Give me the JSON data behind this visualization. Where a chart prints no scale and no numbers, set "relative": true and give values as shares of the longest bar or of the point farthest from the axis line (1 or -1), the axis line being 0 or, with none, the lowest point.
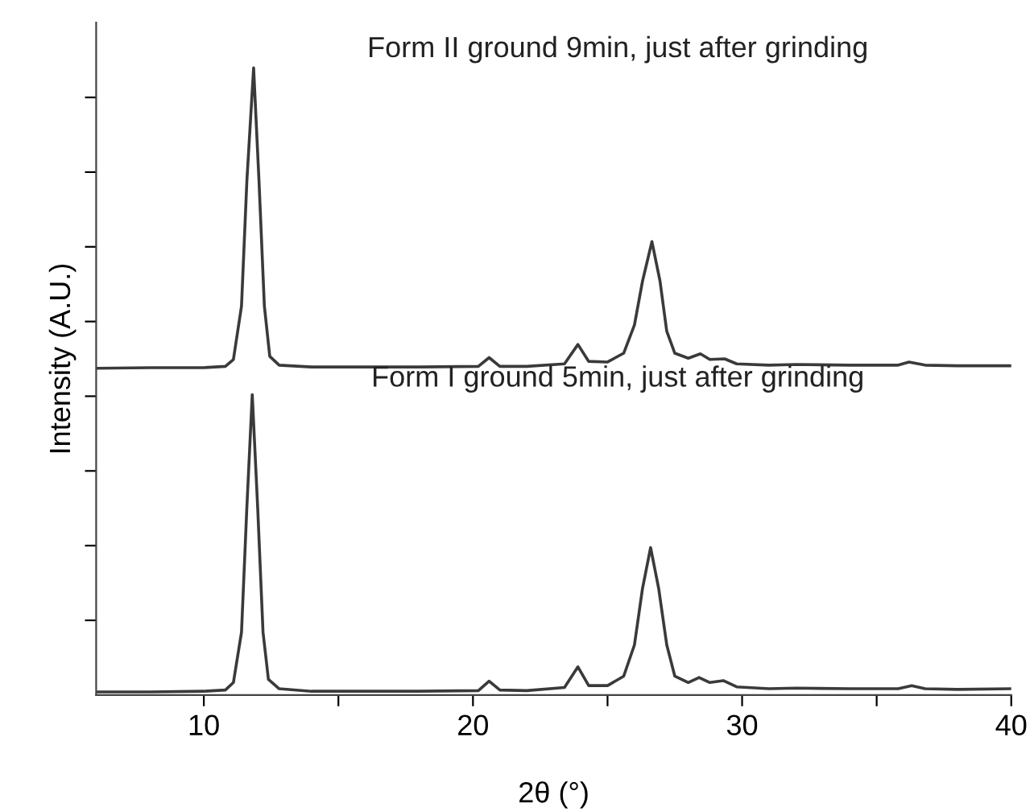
{
  "chart_data": {
    "type": "line",
    "relative": true,
    "xlabel": "2θ (°)",
    "ylabel": "Intensity (A.U.)",
    "xlim": [
      6,
      40
    ],
    "xticks": [
      10,
      {
        "value": 15,
        "label": null
      },
      20,
      {
        "value": 25,
        "label": null
      },
      30,
      {
        "value": 35,
        "label": null
      },
      40
    ],
    "annotations": [
      "Form II ground 9min, just after grinding",
      "Form I ground 5min, just after grinding"
    ],
    "tick_labels": "x",
    "grid": false,
    "legend": false,
    "marker": "none",
    "line_style": "solid",
    "series": [
      {
        "color": "#3a3a3a",
        "x": [
          6,
          8,
          10,
          10.8,
          11.1,
          11.4,
          11.6,
          11.85,
          12.05,
          12.25,
          12.45,
          12.8,
          14,
          16,
          18,
          20.2,
          20.6,
          21.0,
          22,
          23.4,
          23.9,
          24.3,
          25,
          25.6,
          26.0,
          26.3,
          26.65,
          26.95,
          27.2,
          27.5,
          28.0,
          28.45,
          28.8,
          29.35,
          29.8,
          31,
          32,
          34,
          35.8,
          36.2,
          36.8,
          38,
          40
        ],
        "values": [
          0.521,
          0.522,
          0.522,
          0.524,
          0.535,
          0.62,
          0.82,
          1.0,
          0.82,
          0.62,
          0.54,
          0.526,
          0.523,
          0.523,
          0.523,
          0.524,
          0.538,
          0.524,
          0.524,
          0.528,
          0.559,
          0.532,
          0.531,
          0.545,
          0.59,
          0.66,
          0.723,
          0.66,
          0.58,
          0.545,
          0.537,
          0.544,
          0.535,
          0.536,
          0.528,
          0.526,
          0.527,
          0.526,
          0.526,
          0.531,
          0.526,
          0.525,
          0.525
        ]
      },
      {
        "color": "#3a3a3a",
        "x": [
          6,
          8,
          10,
          10.8,
          11.1,
          11.4,
          11.6,
          11.8,
          12.0,
          12.2,
          12.4,
          12.8,
          14,
          16,
          18,
          20.2,
          20.6,
          21.0,
          22,
          23.4,
          23.9,
          24.3,
          25,
          25.6,
          26.0,
          26.3,
          26.6,
          26.9,
          27.2,
          27.5,
          28.0,
          28.4,
          28.8,
          29.3,
          29.8,
          31,
          32,
          34,
          35.8,
          36.3,
          36.8,
          38,
          40
        ],
        "values": [
          0.005,
          0.005,
          0.006,
          0.008,
          0.02,
          0.1,
          0.3,
          0.479,
          0.3,
          0.1,
          0.025,
          0.01,
          0.006,
          0.006,
          0.006,
          0.007,
          0.022,
          0.008,
          0.007,
          0.012,
          0.045,
          0.015,
          0.015,
          0.03,
          0.08,
          0.17,
          0.235,
          0.17,
          0.08,
          0.03,
          0.02,
          0.028,
          0.02,
          0.023,
          0.013,
          0.01,
          0.011,
          0.01,
          0.01,
          0.015,
          0.01,
          0.009,
          0.01
        ]
      }
    ]
  }
}
